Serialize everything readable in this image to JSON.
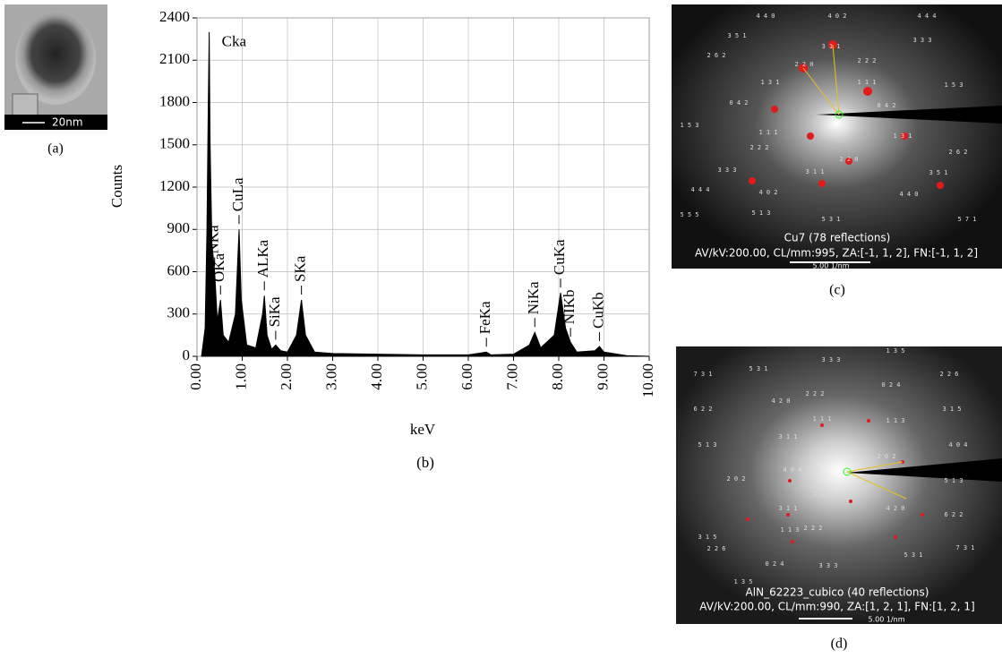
{
  "panel_a": {
    "scale_bar": "20nm",
    "caption": "(a)"
  },
  "chart_data": {
    "type": "area",
    "caption": "(b)",
    "x_label": "keV",
    "y_label": "Counts",
    "color": "#000000",
    "x": [
      0.1,
      0.18,
      0.22,
      0.25,
      0.27,
      0.29,
      0.33,
      0.39,
      0.45,
      0.52,
      0.58,
      0.7,
      0.85,
      0.93,
      0.98,
      1.1,
      1.3,
      1.45,
      1.49,
      1.55,
      1.65,
      1.74,
      1.85,
      2.0,
      2.2,
      2.31,
      2.4,
      2.6,
      3.0,
      4.0,
      5.0,
      6.0,
      6.3,
      6.4,
      6.5,
      7.0,
      7.35,
      7.47,
      7.6,
      7.9,
      8.04,
      8.15,
      8.26,
      8.4,
      8.8,
      8.9,
      9.0,
      9.5,
      10.0
    ],
    "values": [
      0,
      200,
      900,
      1800,
      2300,
      1500,
      800,
      600,
      250,
      400,
      150,
      100,
      300,
      900,
      400,
      80,
      60,
      300,
      430,
      150,
      50,
      80,
      40,
      30,
      150,
      400,
      150,
      30,
      20,
      15,
      10,
      10,
      25,
      30,
      10,
      15,
      80,
      170,
      60,
      150,
      450,
      200,
      100,
      30,
      40,
      70,
      30,
      5,
      0
    ],
    "annotations": [
      {
        "text": "Cka",
        "x": 0.27
      },
      {
        "text": "NKa",
        "x": 0.39
      },
      {
        "text": "OKa",
        "x": 0.52
      },
      {
        "text": "CuLa",
        "x": 0.93
      },
      {
        "text": "ALKa",
        "x": 1.49
      },
      {
        "text": "SiKa",
        "x": 1.74
      },
      {
        "text": "SKa",
        "x": 2.31
      },
      {
        "text": "FeKa",
        "x": 6.4
      },
      {
        "text": "NiKa",
        "x": 7.47
      },
      {
        "text": "CuKa",
        "x": 8.04
      },
      {
        "text": "NIKb",
        "x": 8.26
      },
      {
        "text": "CuKb",
        "x": 8.9
      }
    ],
    "xlim": [
      0,
      10
    ],
    "ylim": [
      0,
      2400
    ],
    "xticks": [
      {
        "value": 0,
        "label": "0.00"
      },
      {
        "value": 1,
        "label": "1.00"
      },
      {
        "value": 2,
        "label": "2.00"
      },
      {
        "value": 3,
        "label": "3.00"
      },
      {
        "value": 4,
        "label": "4.00"
      },
      {
        "value": 5,
        "label": "5.00"
      },
      {
        "value": 6,
        "label": "6.00"
      },
      {
        "value": 7,
        "label": "7.00"
      },
      {
        "value": 8,
        "label": "8.00"
      },
      {
        "value": 9,
        "label": "9.00"
      },
      {
        "value": 10,
        "label": "10.00"
      }
    ],
    "yticks": [
      0,
      300,
      600,
      900,
      1200,
      1500,
      1800,
      2100,
      2400
    ],
    "grid": true
  },
  "panel_c": {
    "caption": "(c)",
    "title": "Cu7   (78 reflections)",
    "info": "AV/kV:200.00, CL/mm:995, ZA:[-1, 1, 2], FN:[-1, 1, 2]",
    "scale": "5.00 1/nm",
    "indices": [
      "4 4 0",
      "4 0 2",
      "4 4 4",
      "3 5 1",
      "3 1 1",
      "3 3 3",
      "2 6 2",
      "2 2 0",
      "2 2 2",
      "1 3 1",
      "1 1 1",
      "1 5 3",
      "0 4 2",
      "0 4 2",
      "1 5 3",
      "1 1 1",
      "1 3 1",
      "2 6 2",
      "2 2 2",
      "3 1 1",
      "3 3 3",
      "2 2 0",
      "3 5 1",
      "4 4 4",
      "4 0 2",
      "4 4 0",
      "5 1 3",
      "5 3 1",
      "5 5 5",
      "5 7 1"
    ]
  },
  "panel_d": {
    "caption": "(d)",
    "title": "AlN_62223_cubico   (40 reflections)",
    "info": "AV/kV:200.00, CL/mm:990, ZA:[1, 2, 1], FN:[1, 2, 1]",
    "scale": "5.00 1/nm",
    "indices": [
      "1 3 5",
      "3 3 3",
      "7 3 1",
      "5 3 1",
      "2 2 6",
      "6 2 2",
      "4 2 0",
      "0 2 4",
      "2 2 2",
      "3 1 5",
      "1 1 3",
      "5 1 3",
      "3 1 1",
      "1 1 1",
      "4 0 4",
      "2 0 2",
      "2 0 2",
      "4 0 4",
      "5 1 3",
      "1 1 1",
      "3 1 1",
      "1 1 3",
      "4 2 0",
      "6 2 2",
      "2 2 2",
      "3 1 5",
      "0 2 4",
      "5 3 1",
      "2 2 6",
      "7 3 1",
      "3 3 3",
      "1 3 5"
    ]
  }
}
